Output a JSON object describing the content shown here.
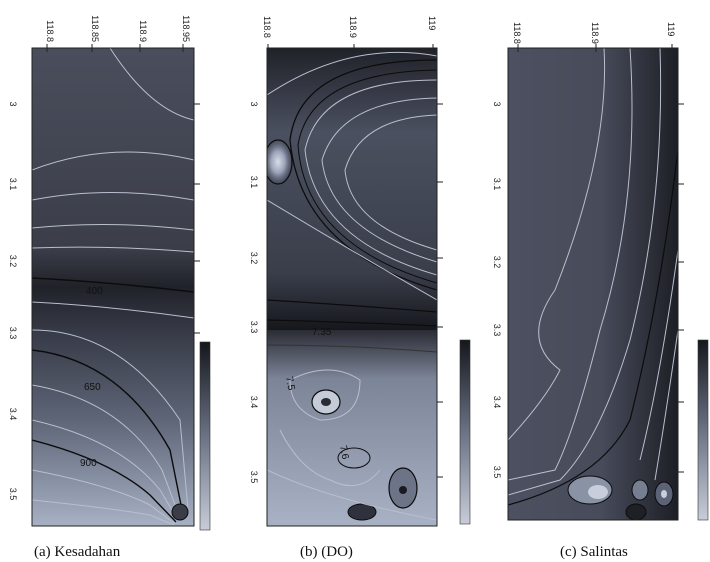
{
  "panels": [
    {
      "id": "a",
      "caption": "(a)  Kesadahan",
      "top_ticks": [
        "118.8",
        "118.85",
        "118.9",
        "118.95"
      ],
      "left_ticks": [
        "3",
        "3.1",
        "3.2",
        "3.3",
        "3.4",
        "3.5"
      ],
      "contour_labels": [
        "400",
        "650",
        "900"
      ]
    },
    {
      "id": "b",
      "caption": "(b)  (DO)",
      "top_ticks": [
        "118.8",
        "118.9",
        "119"
      ],
      "left_ticks": [
        "3",
        "3.1",
        "3.2",
        "3.3",
        "3.4",
        "3.5"
      ],
      "contour_labels": [
        "7.35",
        "7.5",
        "7.6"
      ]
    },
    {
      "id": "c",
      "caption": "(c) Salintas",
      "top_ticks": [
        "118.8",
        "118.9",
        "119"
      ],
      "left_ticks": [
        "3",
        "3.1",
        "3.2",
        "3.3",
        "3.4",
        "3.5"
      ],
      "contour_labels": []
    }
  ],
  "colors": {
    "dark": "#2a2c33",
    "mid": "#4d5160",
    "light": "#9aa2b6",
    "contour_light": "#b8bfcd",
    "contour_dark": "#0c0c0c"
  }
}
